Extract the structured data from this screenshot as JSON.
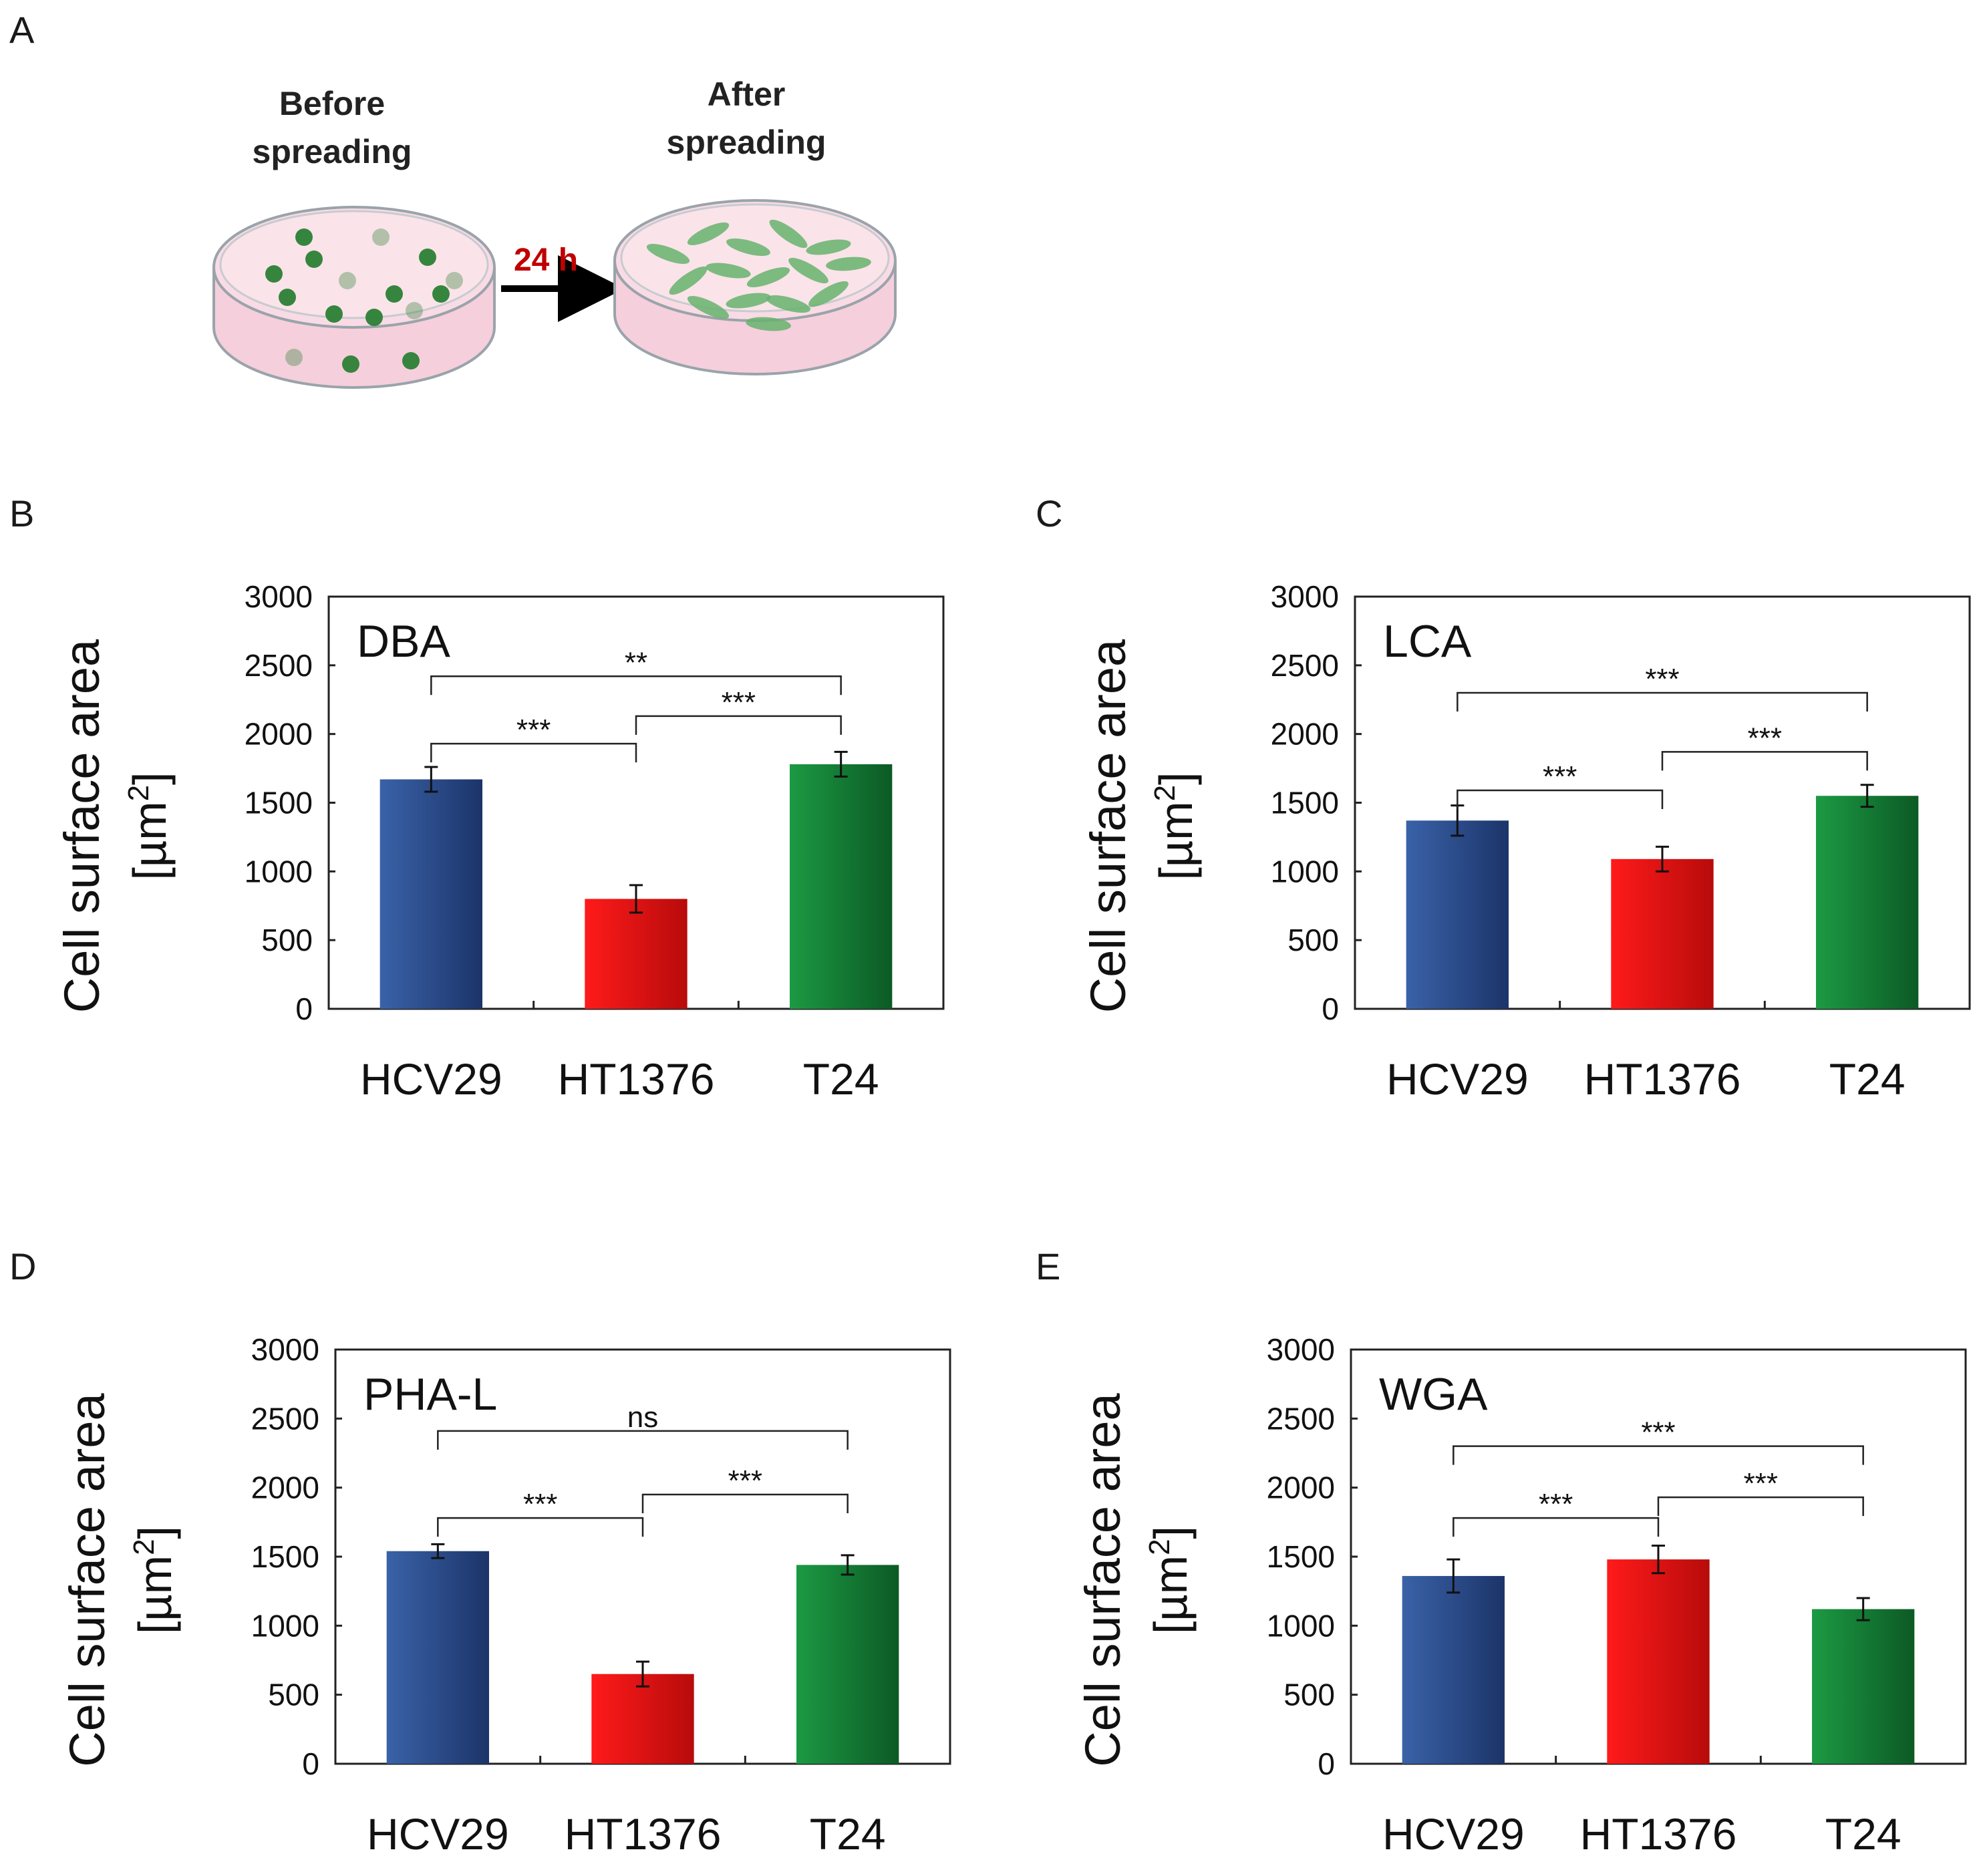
{
  "panels": {
    "A": {
      "label": "A",
      "before_label": [
        "Before",
        "spreading"
      ],
      "after_label": [
        "After",
        "spreading"
      ],
      "time_label": "24 h"
    }
  },
  "colors": {
    "HCV29": "#2d4e8f",
    "HT1376": "#e41212",
    "T24": "#157a35",
    "dish_medium": "#f6c9d7",
    "cell_green": "#2f8a3a"
  },
  "chart_data": [
    {
      "type": "bar",
      "panel": "B",
      "lectin": "DBA",
      "categories": [
        "HCV29",
        "HT1376",
        "T24"
      ],
      "values": [
        1670,
        800,
        1780
      ],
      "errors": [
        90,
        100,
        90
      ],
      "ylabel": "Cell surface area",
      "yunit": "[µm",
      "ylim": [
        0,
        3000
      ],
      "yticks": [
        "0",
        "500",
        "1000",
        "1500",
        "2000",
        "2500",
        "3000"
      ],
      "significance": [
        {
          "from": 0,
          "to": 2,
          "label": "**",
          "y": 2420
        },
        {
          "from": 1,
          "to": 2,
          "label": "***",
          "y": 2130
        },
        {
          "from": 0,
          "to": 1,
          "label": "***",
          "y": 1930
        }
      ]
    },
    {
      "type": "bar",
      "panel": "C",
      "lectin": "LCA",
      "categories": [
        "HCV29",
        "HT1376",
        "T24"
      ],
      "values": [
        1370,
        1090,
        1550
      ],
      "errors": [
        110,
        90,
        80
      ],
      "ylabel": "Cell surface area",
      "yunit": "[µm",
      "ylim": [
        0,
        3000
      ],
      "yticks": [
        "0",
        "500",
        "1000",
        "1500",
        "2000",
        "2500",
        "3000"
      ],
      "significance": [
        {
          "from": 0,
          "to": 2,
          "label": "***",
          "y": 2300
        },
        {
          "from": 1,
          "to": 2,
          "label": "***",
          "y": 1870
        },
        {
          "from": 0,
          "to": 1,
          "label": "***",
          "y": 1590
        }
      ]
    },
    {
      "type": "bar",
      "panel": "D",
      "lectin": "PHA-L",
      "categories": [
        "HCV29",
        "HT1376",
        "T24"
      ],
      "values": [
        1540,
        650,
        1440
      ],
      "errors": [
        50,
        90,
        70
      ],
      "ylabel": "Cell surface area",
      "yunit": "[µm",
      "ylim": [
        0,
        3000
      ],
      "yticks": [
        "0",
        "500",
        "1000",
        "1500",
        "2000",
        "2500",
        "3000"
      ],
      "significance": [
        {
          "from": 0,
          "to": 2,
          "label": "ns",
          "y": 2410
        },
        {
          "from": 1,
          "to": 2,
          "label": "***",
          "y": 1950
        },
        {
          "from": 0,
          "to": 1,
          "label": "***",
          "y": 1780
        }
      ]
    },
    {
      "type": "bar",
      "panel": "E",
      "lectin": "WGA",
      "categories": [
        "HCV29",
        "HT1376",
        "T24"
      ],
      "values": [
        1360,
        1480,
        1120
      ],
      "errors": [
        120,
        100,
        80
      ],
      "ylabel": "Cell surface area",
      "yunit": "[µm",
      "ylim": [
        0,
        3000
      ],
      "yticks": [
        "0",
        "500",
        "1000",
        "1500",
        "2000",
        "2500",
        "3000"
      ],
      "significance": [
        {
          "from": 0,
          "to": 2,
          "label": "***",
          "y": 2300
        },
        {
          "from": 1,
          "to": 2,
          "label": "***",
          "y": 1930
        },
        {
          "from": 0,
          "to": 1,
          "label": "***",
          "y": 1780
        }
      ]
    }
  ]
}
